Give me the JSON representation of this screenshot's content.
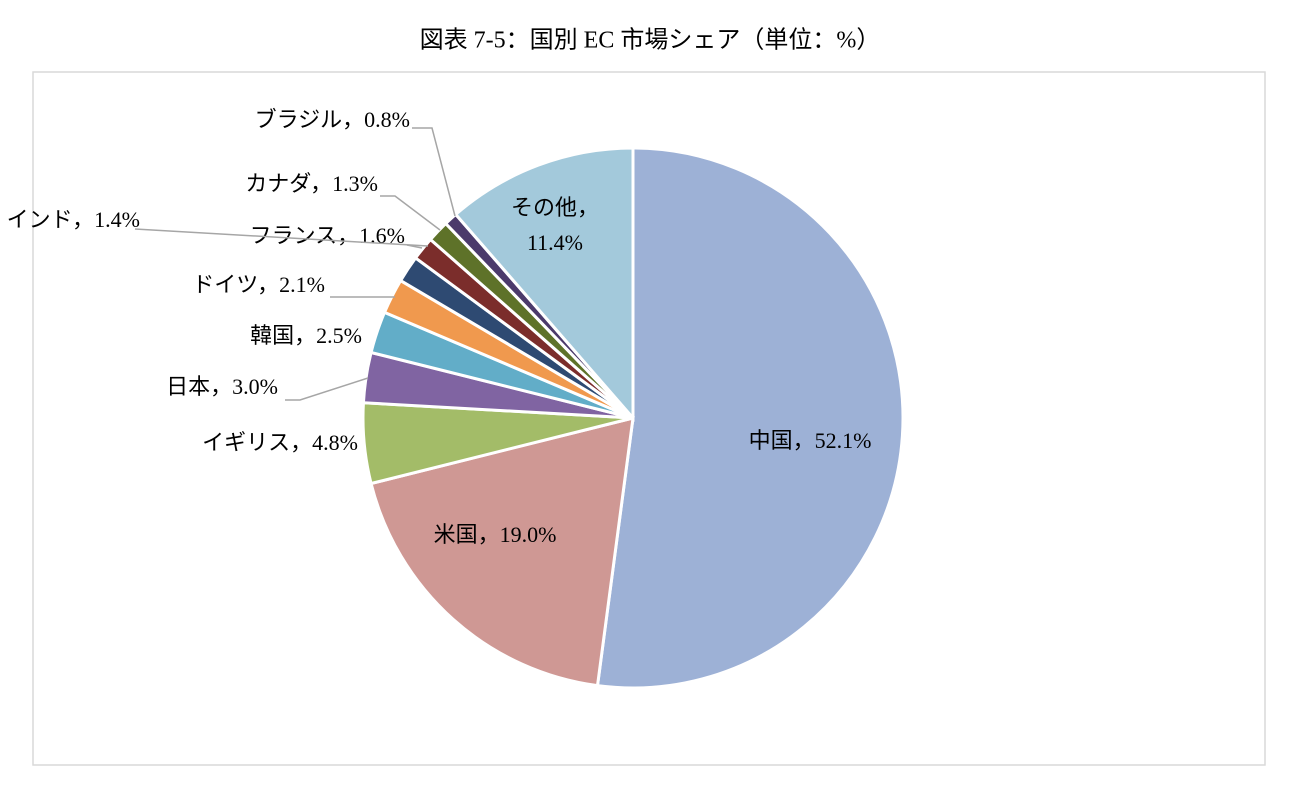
{
  "chart_data": {
    "type": "pie",
    "title": "図表 7-5：国別 EC 市場シェア（単位：%）",
    "label_separator": "，",
    "categories": [
      "中国",
      "米国",
      "イギリス",
      "日本",
      "韓国",
      "ドイツ",
      "フランス",
      "インド",
      "カナダ",
      "ブラジル",
      "その他"
    ],
    "values": [
      52.1,
      19.0,
      4.8,
      3.0,
      2.5,
      2.1,
      1.6,
      1.4,
      1.3,
      0.8,
      11.4
    ],
    "value_labels": [
      "52.1%",
      "19.0%",
      "4.8%",
      "3.0%",
      "2.5%",
      "2.1%",
      "1.6%",
      "1.4%",
      "1.3%",
      "0.8%",
      "11.4%"
    ],
    "colors": [
      "#9db1d6",
      "#cf9894",
      "#a3bc68",
      "#8064a2",
      "#62adc8",
      "#f0994e",
      "#2e4a72",
      "#7b2d2b",
      "#5e7229",
      "#4b3a6b",
      "#a3c9db"
    ]
  }
}
